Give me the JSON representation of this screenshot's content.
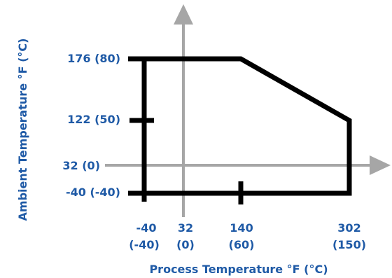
{
  "chart_data": {
    "type": "line",
    "xlabel": "Process Temperature °F (°C)",
    "ylabel": "Ambient Temperature °F (°C)",
    "x_ticks": [
      {
        "value": -40,
        "line1": "-40",
        "line2": "(-40)"
      },
      {
        "value": 32,
        "line1": "32",
        "line2": "(0)"
      },
      {
        "value": 140,
        "line1": "140",
        "line2": "(60)"
      },
      {
        "value": 302,
        "line1": "302",
        "line2": "(150)"
      }
    ],
    "y_ticks": [
      {
        "value": 176,
        "label": "176 (80)"
      },
      {
        "value": 122,
        "label": "122 (50)"
      },
      {
        "value": 32,
        "label": "32 (0)"
      },
      {
        "value": -40,
        "label": "-40 (-40)"
      }
    ],
    "operating_region": {
      "x": [
        -40,
        -40,
        140,
        302,
        302
      ],
      "y": [
        -40,
        176,
        176,
        122,
        -40
      ]
    },
    "colors": {
      "text": "#1f5aa6",
      "boundary": "#000000",
      "axes": "#a6a6a6"
    }
  }
}
